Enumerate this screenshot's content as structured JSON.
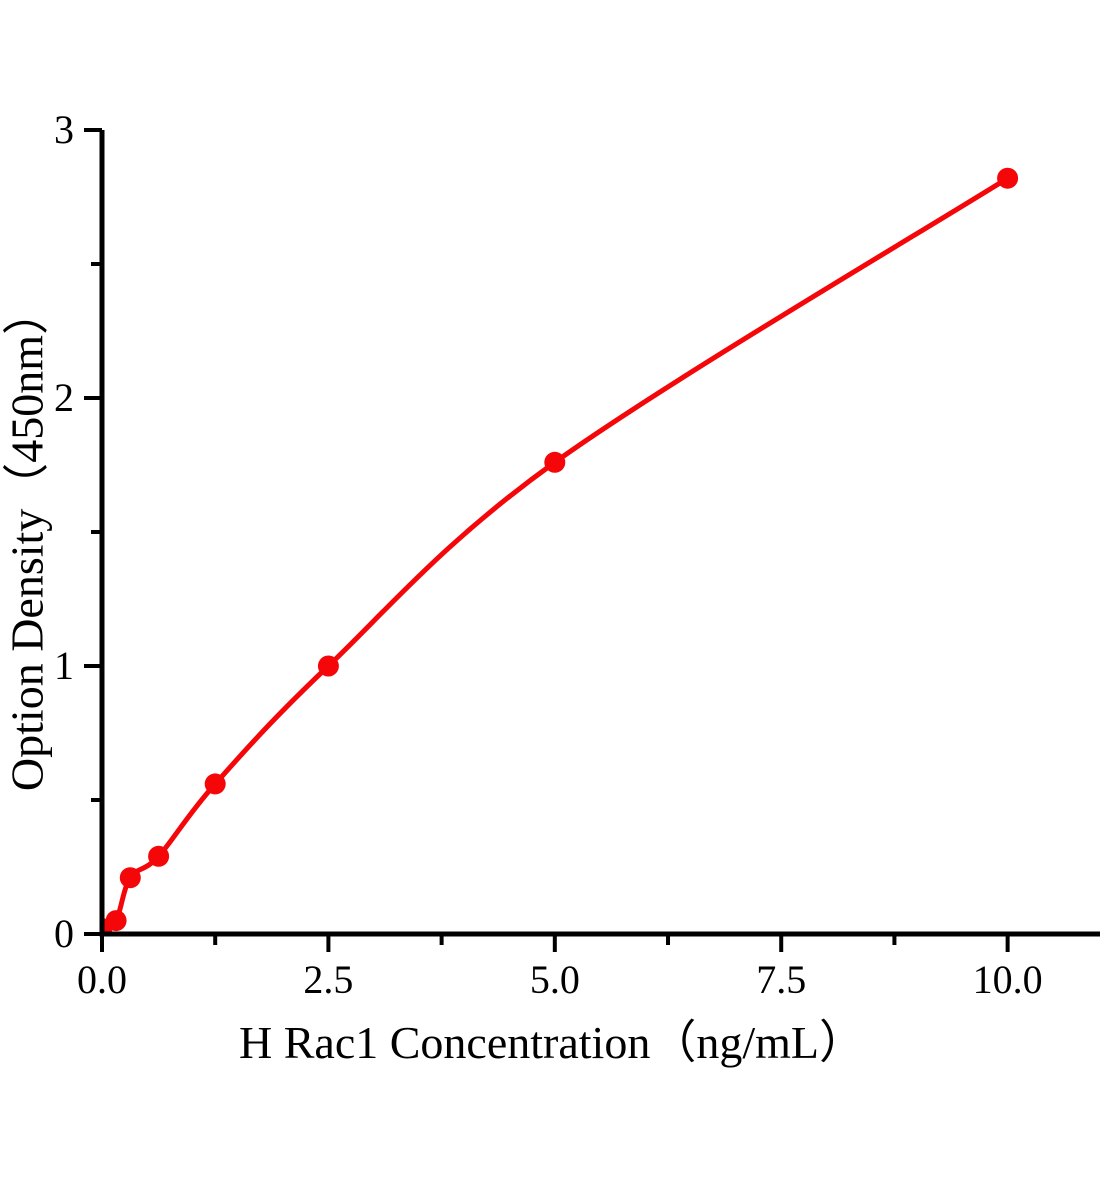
{
  "chart_data": {
    "type": "line",
    "title": "",
    "xlabel": "H Rac1 Concentration（ng/mL）",
    "ylabel": "Option Density（450nm）",
    "x": [
      0,
      0.156,
      0.3125,
      0.625,
      1.25,
      2.5,
      5,
      10
    ],
    "y": [
      0.02,
      0.05,
      0.21,
      0.29,
      0.56,
      1.0,
      1.76,
      2.82
    ],
    "xlim": [
      0,
      11.02
    ],
    "ylim": [
      0,
      3
    ],
    "x_major_ticks": [
      0,
      2.5,
      5,
      7.5,
      10
    ],
    "x_tick_labels": [
      "0.0",
      "2.5",
      "5.0",
      "7.5",
      "10.0"
    ],
    "x_minor_ticks": [
      1.25,
      3.75,
      6.25,
      8.75
    ],
    "y_major_ticks": [
      0,
      1,
      2,
      3
    ],
    "y_tick_labels": [
      "0",
      "1",
      "2",
      "3"
    ],
    "y_minor_ticks": [
      0.5,
      1.5,
      2.5
    ],
    "grid": false,
    "legend": false,
    "curve_style": "smooth",
    "marker": "circle",
    "colors": {
      "series": "#f40609",
      "axis": "#000000",
      "tick_text": "#000000",
      "background": "#ffffff"
    }
  }
}
